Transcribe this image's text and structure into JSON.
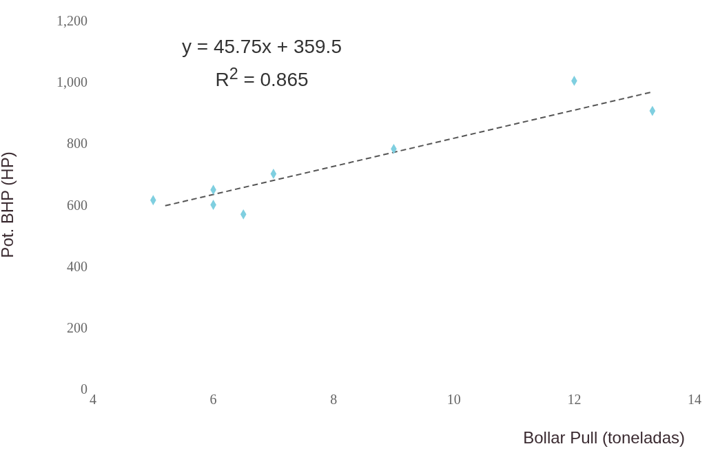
{
  "chart_data": {
    "type": "scatter",
    "xlabel": "Bollar Pull (toneladas)",
    "ylabel": "Pot. BHP (HP)",
    "annotations": [
      "y = 45.75x + 359.5",
      "R$^{2}$ = 0.865"
    ],
    "xlim": [
      4,
      14
    ],
    "xticks": [
      4,
      6,
      8,
      10,
      12,
      14
    ],
    "ylim": [
      0,
      1200
    ],
    "yticks": [
      0,
      200,
      400,
      600,
      800,
      {
        "value": 1000,
        "label": "1,000"
      },
      {
        "value": 1200,
        "label": "1,200"
      }
    ],
    "grid": false,
    "legend": false,
    "marker": "diamond",
    "series": [
      {
        "color": "#7fcfe0",
        "x": [
          5,
          6,
          6,
          6.5,
          7,
          9,
          12,
          13.3
        ],
        "values": [
          615,
          649,
          600,
          569,
          701,
          782,
          1004,
          906
        ]
      },
      {
        "type": "line",
        "color": "#555555",
        "line_style": "dashed",
        "marker": "none",
        "x": [
          5.2,
          13.3
        ],
        "values": [
          597,
          968
        ]
      }
    ]
  }
}
